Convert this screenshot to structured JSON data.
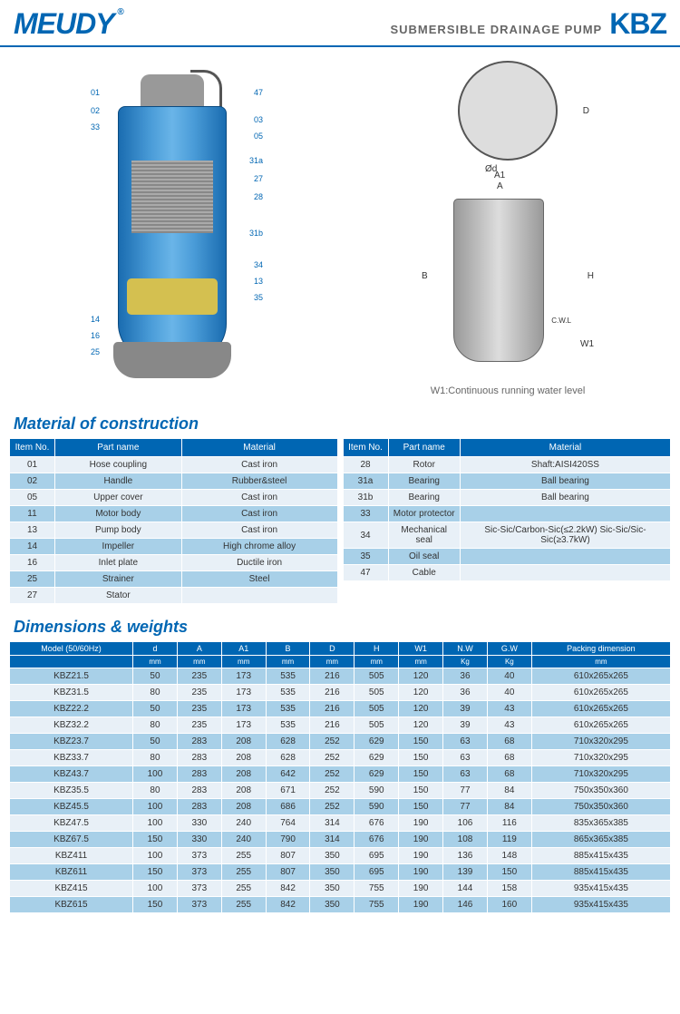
{
  "header": {
    "logo": "MEUDY",
    "reg": "®",
    "subtitle": "SUBMERSIBLE DRAINAGE PUMP",
    "model": "KBZ"
  },
  "callouts_left": [
    "01",
    "02",
    "33",
    "14",
    "16",
    "25"
  ],
  "callouts_right": [
    "47",
    "03",
    "05",
    "31a",
    "27",
    "28",
    "31b",
    "34",
    "13",
    "35"
  ],
  "tech_labels": {
    "A": "A",
    "A1": "A1",
    "D": "D",
    "d": "Ød",
    "B": "B",
    "H": "H",
    "W1": "W1",
    "cwl": "C.W.L"
  },
  "water_note": "W1:Continuous running water level",
  "section1": "Material of construction",
  "section2": "Dimensions & weights",
  "mat_headers": [
    "Item No.",
    "Part name",
    "Material"
  ],
  "mat_left": [
    [
      "01",
      "Hose coupling",
      "Cast iron"
    ],
    [
      "02",
      "Handle",
      "Rubber&steel"
    ],
    [
      "05",
      "Upper cover",
      "Cast iron"
    ],
    [
      "11",
      "Motor body",
      "Cast iron"
    ],
    [
      "13",
      "Pump body",
      "Cast iron"
    ],
    [
      "14",
      "Impeller",
      "High chrome alloy"
    ],
    [
      "16",
      "Inlet plate",
      "Ductile iron"
    ],
    [
      "25",
      "Strainer",
      "Steel"
    ],
    [
      "27",
      "Stator",
      ""
    ]
  ],
  "mat_right": [
    [
      "28",
      "Rotor",
      "Shaft:AISI420SS"
    ],
    [
      "31a",
      "Bearing",
      "Ball bearing"
    ],
    [
      "31b",
      "Bearing",
      "Ball bearing"
    ],
    [
      "33",
      "Motor protector",
      ""
    ],
    [
      "34",
      "Mechanical seal",
      "Sic-Sic/Carbon-Sic(≤2.2kW) Sic-Sic/Sic-Sic(≥3.7kW)"
    ],
    [
      "35",
      "Oil seal",
      ""
    ],
    [
      "47",
      "Cable",
      ""
    ]
  ],
  "dim_headers": [
    "Model (50/60Hz)",
    "d",
    "A",
    "A1",
    "B",
    "D",
    "H",
    "W1",
    "N.W",
    "G.W",
    "Packing dimension"
  ],
  "dim_units": [
    "",
    "mm",
    "mm",
    "mm",
    "mm",
    "mm",
    "mm",
    "mm",
    "Kg",
    "Kg",
    "mm"
  ],
  "dim_rows": [
    [
      "KBZ21.5",
      "50",
      "235",
      "173",
      "535",
      "216",
      "505",
      "120",
      "36",
      "40",
      "610x265x265"
    ],
    [
      "KBZ31.5",
      "80",
      "235",
      "173",
      "535",
      "216",
      "505",
      "120",
      "36",
      "40",
      "610x265x265"
    ],
    [
      "KBZ22.2",
      "50",
      "235",
      "173",
      "535",
      "216",
      "505",
      "120",
      "39",
      "43",
      "610x265x265"
    ],
    [
      "KBZ32.2",
      "80",
      "235",
      "173",
      "535",
      "216",
      "505",
      "120",
      "39",
      "43",
      "610x265x265"
    ],
    [
      "KBZ23.7",
      "50",
      "283",
      "208",
      "628",
      "252",
      "629",
      "150",
      "63",
      "68",
      "710x320x295"
    ],
    [
      "KBZ33.7",
      "80",
      "283",
      "208",
      "628",
      "252",
      "629",
      "150",
      "63",
      "68",
      "710x320x295"
    ],
    [
      "KBZ43.7",
      "100",
      "283",
      "208",
      "642",
      "252",
      "629",
      "150",
      "63",
      "68",
      "710x320x295"
    ],
    [
      "KBZ35.5",
      "80",
      "283",
      "208",
      "671",
      "252",
      "590",
      "150",
      "77",
      "84",
      "750x350x360"
    ],
    [
      "KBZ45.5",
      "100",
      "283",
      "208",
      "686",
      "252",
      "590",
      "150",
      "77",
      "84",
      "750x350x360"
    ],
    [
      "KBZ47.5",
      "100",
      "330",
      "240",
      "764",
      "314",
      "676",
      "190",
      "106",
      "116",
      "835x365x385"
    ],
    [
      "KBZ67.5",
      "150",
      "330",
      "240",
      "790",
      "314",
      "676",
      "190",
      "108",
      "119",
      "865x365x385"
    ],
    [
      "KBZ411",
      "100",
      "373",
      "255",
      "807",
      "350",
      "695",
      "190",
      "136",
      "148",
      "885x415x435"
    ],
    [
      "KBZ611",
      "150",
      "373",
      "255",
      "807",
      "350",
      "695",
      "190",
      "139",
      "150",
      "885x415x435"
    ],
    [
      "KBZ415",
      "100",
      "373",
      "255",
      "842",
      "350",
      "755",
      "190",
      "144",
      "158",
      "935x415x435"
    ],
    [
      "KBZ615",
      "150",
      "373",
      "255",
      "842",
      "350",
      "755",
      "190",
      "146",
      "160",
      "935x415x435"
    ]
  ]
}
